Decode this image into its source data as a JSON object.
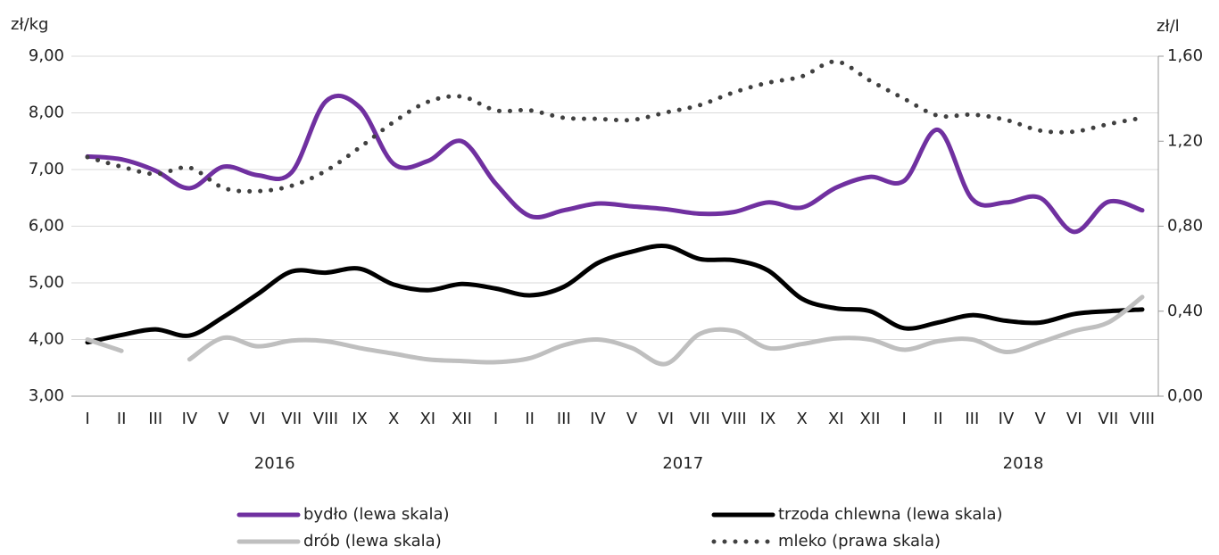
{
  "chart_data": {
    "type": "line",
    "y_unit_label": "zł/kg",
    "y2_unit_label": "zł/l",
    "categories": [
      "I",
      "II",
      "III",
      "IV",
      "V",
      "VI",
      "VII",
      "VIII",
      "IX",
      "X",
      "XI",
      "XII",
      "I",
      "II",
      "III",
      "IV",
      "V",
      "VI",
      "VII",
      "VIII",
      "IX",
      "X",
      "XI",
      "XII",
      "I",
      "II",
      "III",
      "IV",
      "V",
      "VI",
      "VII",
      "VIII"
    ],
    "year_labels": [
      "2016",
      "2017",
      "2018"
    ],
    "series": [
      {
        "name": "bydło (lewa skala)",
        "color": "#7030a0",
        "style": "solid",
        "values": [
          7.23,
          7.18,
          6.98,
          6.67,
          7.05,
          6.9,
          6.95,
          8.2,
          8.1,
          7.1,
          7.15,
          7.5,
          6.75,
          6.18,
          6.28,
          6.4,
          6.35,
          6.3,
          6.22,
          6.25,
          6.42,
          6.33,
          6.68,
          6.87,
          6.8,
          7.7,
          6.48,
          6.42,
          6.5,
          5.9,
          6.43,
          6.28
        ]
      },
      {
        "name": "trzoda chlewna (lewa skala)",
        "color": "#000000",
        "style": "solid",
        "values": [
          3.95,
          4.08,
          4.18,
          4.07,
          4.4,
          4.8,
          5.2,
          5.18,
          5.25,
          4.97,
          4.87,
          4.98,
          4.9,
          4.78,
          4.93,
          5.35,
          5.55,
          5.65,
          5.42,
          5.4,
          5.22,
          4.72,
          4.55,
          4.5,
          4.2,
          4.3,
          4.43,
          4.33,
          4.3,
          4.45,
          4.5,
          4.53
        ]
      },
      {
        "name": "drób (lewa skala)",
        "color": "#bfbfbf",
        "style": "solid",
        "values": [
          4.0,
          3.8,
          null,
          3.65,
          4.03,
          3.88,
          3.98,
          3.97,
          3.85,
          3.75,
          3.65,
          3.62,
          3.6,
          3.67,
          3.9,
          4.0,
          3.85,
          3.57,
          4.1,
          4.15,
          3.85,
          3.92,
          4.02,
          4.0,
          3.82,
          3.97,
          4.0,
          3.78,
          3.95,
          4.15,
          4.3,
          4.75
        ]
      },
      {
        "name": "mleko (prawa skala)",
        "color": "#404040",
        "style": "dotted",
        "axis": "y2",
        "values": [
          1.125,
          1.08,
          1.045,
          1.075,
          0.98,
          0.965,
          0.99,
          1.06,
          1.17,
          1.29,
          1.385,
          1.41,
          1.345,
          1.345,
          1.31,
          1.305,
          1.3,
          1.335,
          1.37,
          1.43,
          1.475,
          1.505,
          1.575,
          1.485,
          1.4,
          1.32,
          1.325,
          1.3,
          1.25,
          1.245,
          1.28,
          1.31
        ]
      }
    ],
    "ylim": [
      3,
      9
    ],
    "yticks": [
      {
        "value": 3,
        "label": "3,00"
      },
      {
        "value": 4,
        "label": "4,00"
      },
      {
        "value": 5,
        "label": "5,00"
      },
      {
        "value": 6,
        "label": "6,00"
      },
      {
        "value": 7,
        "label": "7,00"
      },
      {
        "value": 8,
        "label": "8,00"
      },
      {
        "value": 9,
        "label": "9,00"
      }
    ],
    "y2lim": [
      0,
      1.6
    ],
    "y2ticks": [
      {
        "value": 0,
        "label": "0,00"
      },
      {
        "value": 0.4,
        "label": "0,40"
      },
      {
        "value": 0.8,
        "label": "0,80"
      },
      {
        "value": 1.2,
        "label": "1,20"
      },
      {
        "value": 1.6,
        "label": "1,60"
      }
    ],
    "grid": true
  }
}
